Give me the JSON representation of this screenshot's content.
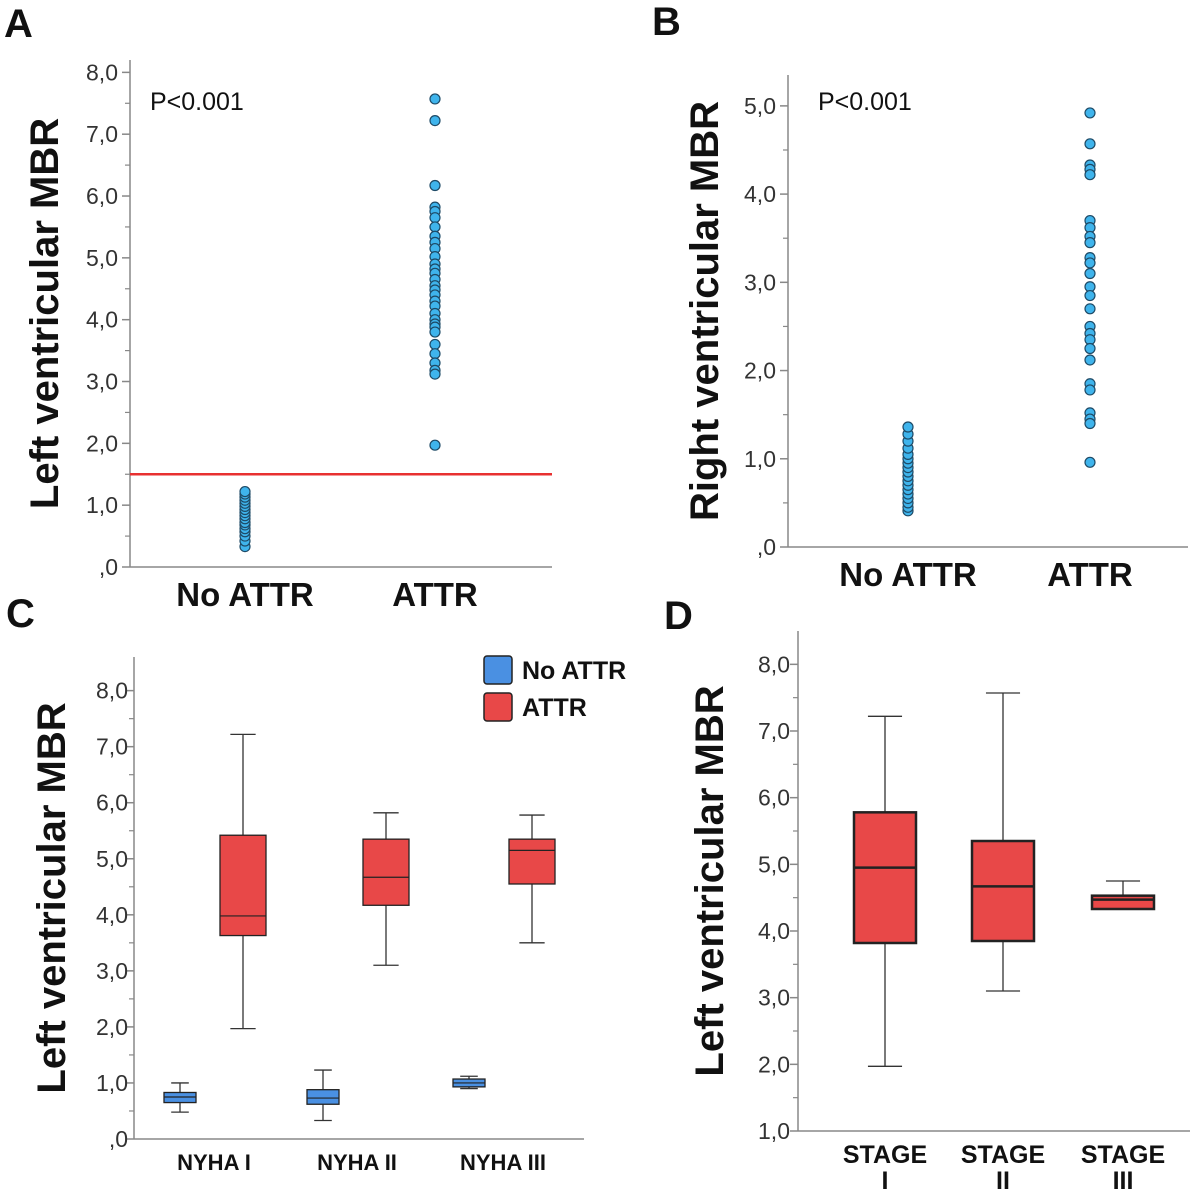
{
  "panel_labels": {
    "a": "A",
    "b": "B",
    "c": "C",
    "d": "D"
  },
  "colors": {
    "dot_fill": "#3fb4ec",
    "dot_stroke": "#1e4a66",
    "no_attr": "#4a90e2",
    "attr": "#e84848",
    "threshold": "#e83030",
    "axis": "#888888"
  },
  "chart_data": [
    {
      "id": "A",
      "type": "scatter",
      "ylabel": "Left ventricular MBR",
      "ylim": [
        0,
        8.2
      ],
      "yticks": [
        {
          "v": 0,
          "label": ",0"
        },
        {
          "v": 1,
          "label": "1,0"
        },
        {
          "v": 2,
          "label": "2,0"
        },
        {
          "v": 3,
          "label": "3,0"
        },
        {
          "v": 4,
          "label": "4,0"
        },
        {
          "v": 5,
          "label": "5,0"
        },
        {
          "v": 6,
          "label": "6,0"
        },
        {
          "v": 7,
          "label": "7,0"
        },
        {
          "v": 8,
          "label": "8,0"
        }
      ],
      "categories": [
        "No ATTR",
        "ATTR"
      ],
      "annotation": "P<0.001",
      "threshold": 1.5,
      "series": [
        {
          "name": "No ATTR",
          "values": [
            0.33,
            0.42,
            0.5,
            0.57,
            0.62,
            0.68,
            0.72,
            0.78,
            0.83,
            0.88,
            0.93,
            0.98,
            1.03,
            1.08,
            1.13,
            1.18,
            1.22
          ]
        },
        {
          "name": "ATTR",
          "values": [
            7.57,
            7.22,
            6.17,
            5.82,
            5.75,
            5.65,
            5.5,
            5.35,
            5.25,
            5.15,
            5.02,
            4.9,
            4.82,
            4.75,
            4.65,
            4.55,
            4.48,
            4.4,
            4.3,
            4.22,
            4.1,
            4.0,
            3.93,
            3.88,
            3.8,
            3.6,
            3.45,
            3.3,
            3.18,
            3.12,
            1.97
          ]
        }
      ]
    },
    {
      "id": "B",
      "type": "scatter",
      "ylabel": "Right ventricular MBR",
      "ylim": [
        0,
        5.35
      ],
      "yticks": [
        {
          "v": 0,
          "label": ",0"
        },
        {
          "v": 1,
          "label": "1,0"
        },
        {
          "v": 2,
          "label": "2,0"
        },
        {
          "v": 3,
          "label": "3,0"
        },
        {
          "v": 4,
          "label": "4,0"
        },
        {
          "v": 5,
          "label": "5,0"
        }
      ],
      "categories": [
        "No ATTR",
        "ATTR"
      ],
      "annotation": "P<0.001",
      "series": [
        {
          "name": "No ATTR",
          "values": [
            0.41,
            0.45,
            0.5,
            0.55,
            0.6,
            0.65,
            0.7,
            0.75,
            0.8,
            0.85,
            0.9,
            0.95,
            1.0,
            1.05,
            1.12,
            1.2,
            1.28,
            1.36
          ]
        },
        {
          "name": "ATTR",
          "values": [
            4.92,
            4.57,
            4.33,
            4.28,
            4.22,
            3.7,
            3.62,
            3.52,
            3.45,
            3.28,
            3.22,
            3.1,
            2.95,
            2.85,
            2.7,
            2.5,
            2.42,
            2.35,
            2.25,
            2.12,
            1.85,
            1.78,
            1.52,
            1.45,
            1.4,
            0.96
          ]
        }
      ]
    },
    {
      "id": "C",
      "type": "box",
      "ylabel": "Left ventricular MBR",
      "ylim": [
        0,
        8.6
      ],
      "yticks": [
        {
          "v": 0,
          "label": ",0"
        },
        {
          "v": 1,
          "label": "1,0"
        },
        {
          "v": 2,
          "label": "2,0"
        },
        {
          "v": 3,
          "label": "3,0"
        },
        {
          "v": 4,
          "label": "4,0"
        },
        {
          "v": 5,
          "label": "5,0"
        },
        {
          "v": 6,
          "label": "6,0"
        },
        {
          "v": 7,
          "label": "7,0"
        },
        {
          "v": 8,
          "label": "8,0"
        }
      ],
      "categories": [
        "NYHA I",
        "NYHA II",
        "NYHA III"
      ],
      "legend": {
        "position": "top-right",
        "entries": [
          "No ATTR",
          "ATTR"
        ]
      },
      "series": [
        {
          "name": "No ATTR",
          "boxes": [
            {
              "min": 0.48,
              "q1": 0.65,
              "median": 0.75,
              "q3": 0.83,
              "max": 1.0
            },
            {
              "min": 0.33,
              "q1": 0.62,
              "median": 0.73,
              "q3": 0.88,
              "max": 1.23
            },
            {
              "min": 0.9,
              "q1": 0.93,
              "median": 1.0,
              "q3": 1.07,
              "max": 1.12
            }
          ]
        },
        {
          "name": "ATTR",
          "boxes": [
            {
              "min": 1.97,
              "q1": 3.63,
              "median": 3.98,
              "q3": 5.42,
              "max": 7.22
            },
            {
              "min": 3.1,
              "q1": 4.17,
              "median": 4.67,
              "q3": 5.35,
              "max": 5.82
            },
            {
              "min": 3.5,
              "q1": 4.55,
              "median": 5.15,
              "q3": 5.35,
              "max": 5.78
            }
          ]
        }
      ]
    },
    {
      "id": "D",
      "type": "box",
      "ylabel": "Left ventricular MBR",
      "ylim": [
        1.0,
        8.5
      ],
      "yticks": [
        {
          "v": 1,
          "label": "1,0"
        },
        {
          "v": 2,
          "label": "2,0"
        },
        {
          "v": 3,
          "label": "3,0"
        },
        {
          "v": 4,
          "label": "4,0"
        },
        {
          "v": 5,
          "label": "5,0"
        },
        {
          "v": 6,
          "label": "6,0"
        },
        {
          "v": 7,
          "label": "7,0"
        },
        {
          "v": 8,
          "label": "8,0"
        }
      ],
      "categories": [
        {
          "line1": "STAGE",
          "line2": "I"
        },
        {
          "line1": "STAGE",
          "line2": "II"
        },
        {
          "line1": "STAGE",
          "line2": "III"
        }
      ],
      "series": [
        {
          "name": "ATTR",
          "boxes": [
            {
              "min": 1.97,
              "q1": 3.82,
              "median": 4.95,
              "q3": 5.78,
              "max": 7.22
            },
            {
              "min": 3.1,
              "q1": 3.85,
              "median": 4.67,
              "q3": 5.35,
              "max": 7.57
            },
            {
              "min": 4.33,
              "q1": 4.33,
              "median": 4.47,
              "q3": 4.53,
              "max": 4.75
            }
          ]
        }
      ]
    }
  ]
}
